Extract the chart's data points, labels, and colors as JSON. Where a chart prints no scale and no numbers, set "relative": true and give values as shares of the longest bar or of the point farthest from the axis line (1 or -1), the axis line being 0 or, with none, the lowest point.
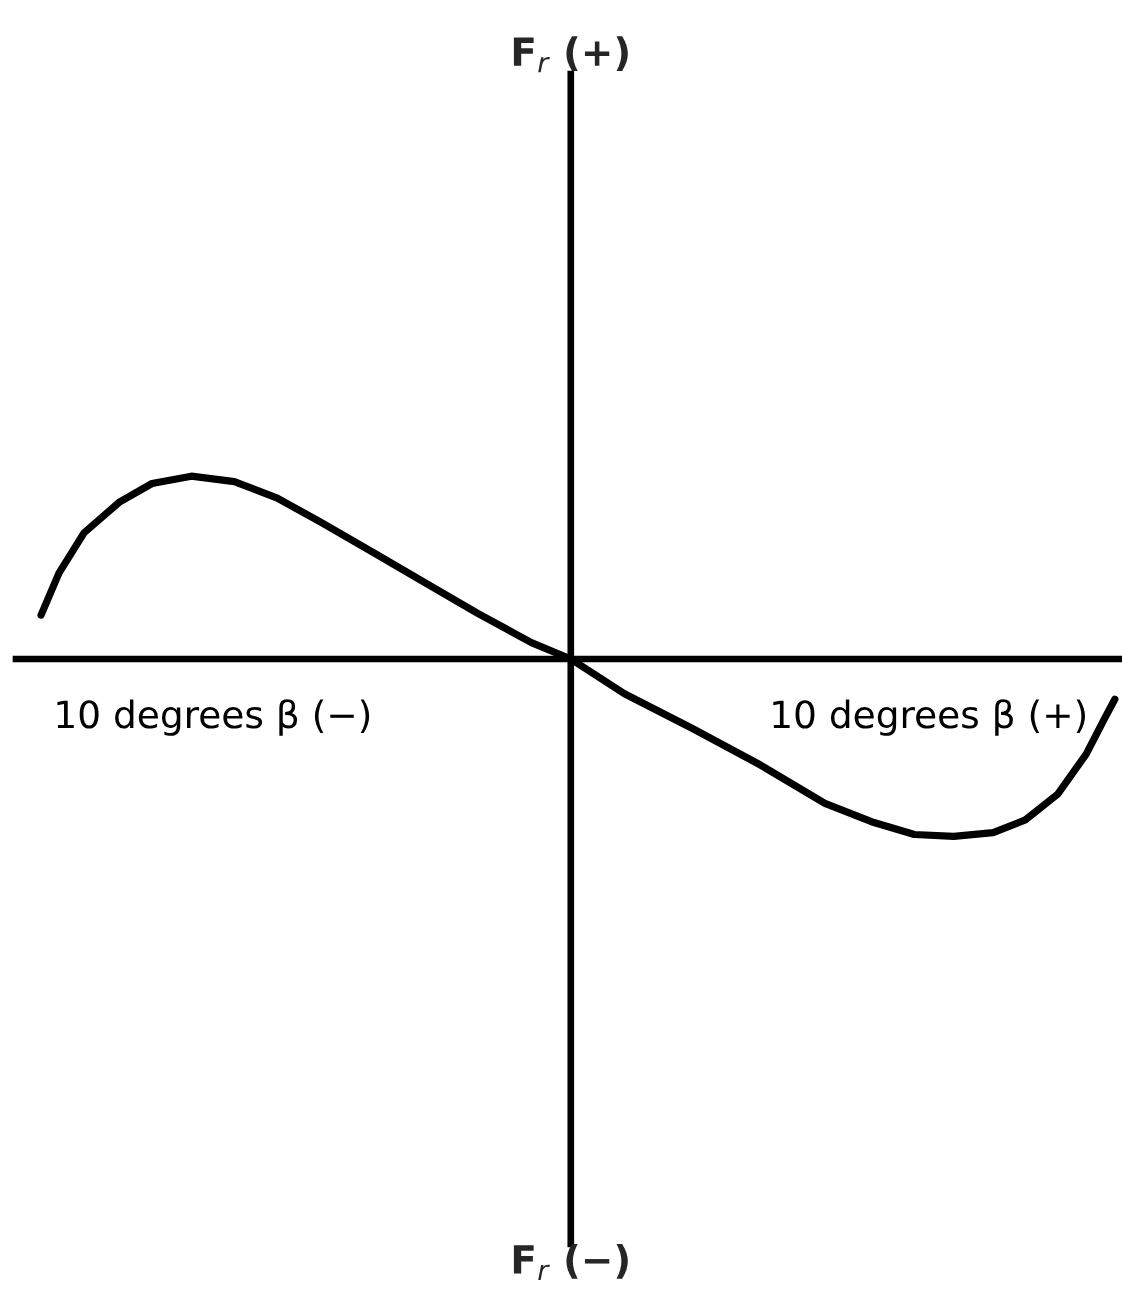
{
  "chart_data": {
    "type": "line",
    "relative": true,
    "color": "#000000",
    "x": [
      -14.8,
      -14.3,
      -13.6,
      -12.6,
      -11.7,
      -10.6,
      -9.4,
      -8.2,
      -7.0,
      -5.5,
      -4.1,
      -2.6,
      -1.1,
      0,
      1.5,
      3.4,
      5.3,
      7.1,
      8.4,
      9.6,
      10.7,
      11.8,
      12.7,
      13.6,
      14.4,
      14.9,
      15.2
    ],
    "values": [
      0.24,
      0.47,
      0.69,
      0.86,
      0.96,
      1.0,
      0.97,
      0.88,
      0.75,
      0.58,
      0.42,
      0.25,
      0.09,
      0,
      -0.19,
      -0.38,
      -0.58,
      -0.79,
      -0.89,
      -0.96,
      -0.97,
      -0.95,
      -0.88,
      -0.74,
      -0.52,
      -0.33,
      -0.22
    ],
    "xlim": [
      -15.5,
      15.4
    ],
    "xticks": [
      {
        "value": -10,
        "label": "10 degrees β (−)"
      },
      {
        "value": 10,
        "label": "10 degrees β (+)"
      }
    ],
    "annotations": [
      "F$_{r}$ (+)",
      "F$_{r}$ (−)"
    ]
  }
}
